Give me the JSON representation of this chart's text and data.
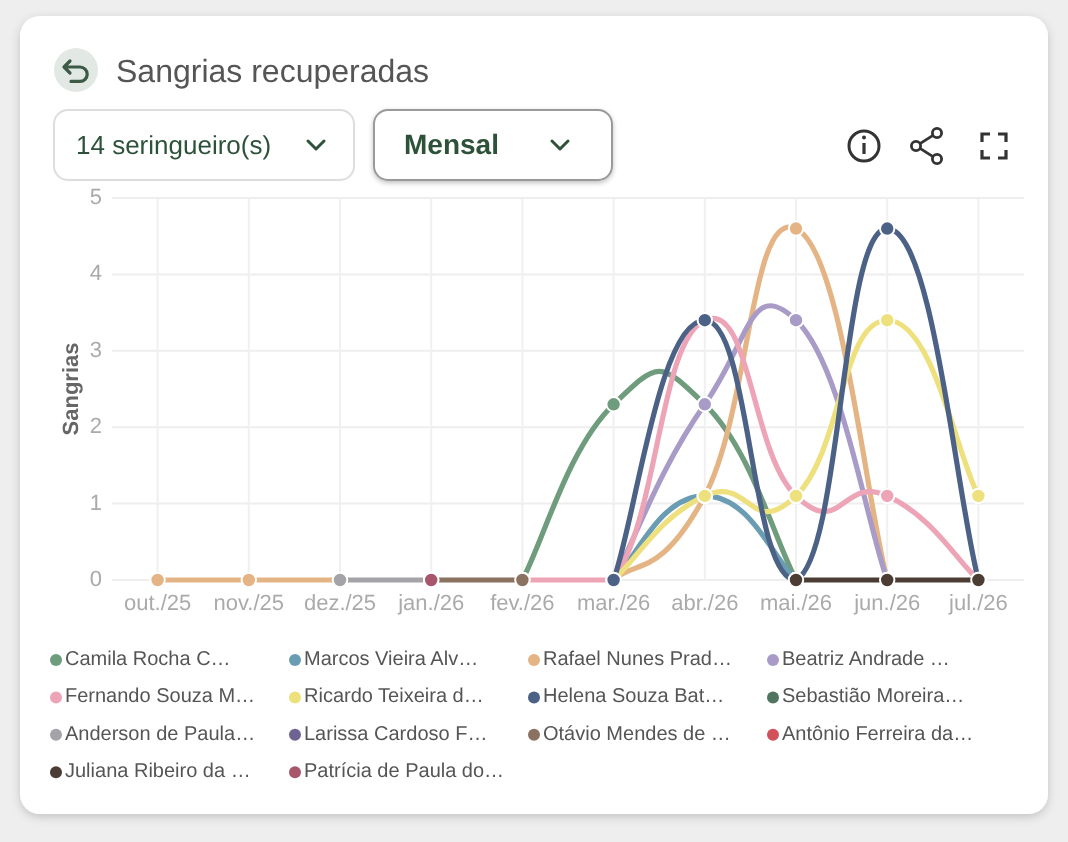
{
  "chart_data": {
    "type": "line",
    "title": "Sangrias recuperadas",
    "ylabel": "Sangrias",
    "annotations": [
      "14 seringueiro(s)",
      "Mensal"
    ],
    "categories": [
      "out./25",
      "nov./25",
      "dez./25",
      "jan./26",
      "fev./26",
      "mar./26",
      "abr./26",
      "mai./26",
      "jun./26",
      "jul./26"
    ],
    "series": [
      {
        "name": "Camila Rocha C…",
        "color": "#6f9c7c",
        "values": [
          null,
          null,
          null,
          null,
          0,
          2.3,
          2.3,
          0,
          null,
          null
        ]
      },
      {
        "name": "Marcos Vieira Alv…",
        "color": "#6a9db3",
        "values": [
          null,
          null,
          null,
          null,
          null,
          0,
          1.1,
          0,
          null,
          null
        ]
      },
      {
        "name": "Rafael Nunes Prad…",
        "color": "#e5b484",
        "values": [
          0,
          0,
          0,
          null,
          null,
          0,
          1.1,
          4.6,
          0,
          null
        ]
      },
      {
        "name": "Beatriz Andrade …",
        "color": "#a99bc7",
        "values": [
          null,
          null,
          null,
          null,
          null,
          0,
          2.3,
          3.4,
          0,
          null
        ]
      },
      {
        "name": "Fernando Souza M…",
        "color": "#eda4b6",
        "values": [
          null,
          null,
          null,
          null,
          0,
          0,
          3.4,
          1.1,
          1.1,
          0
        ]
      },
      {
        "name": "Ricardo Teixeira d…",
        "color": "#eee07c",
        "values": [
          null,
          null,
          null,
          null,
          null,
          0,
          1.1,
          1.1,
          3.4,
          1.1
        ]
      },
      {
        "name": "Helena Souza Bat…",
        "color": "#4c6186",
        "values": [
          null,
          null,
          null,
          null,
          null,
          0,
          3.4,
          0,
          4.6,
          0
        ]
      },
      {
        "name": "Sebastião Moreira…",
        "color": "#4f7560",
        "values": [
          null,
          null,
          null,
          null,
          null,
          null,
          null,
          null,
          null,
          null
        ]
      },
      {
        "name": "Anderson de Paula…",
        "color": "#a3a3a8",
        "values": [
          null,
          null,
          0,
          0,
          null,
          null,
          null,
          null,
          null,
          null
        ]
      },
      {
        "name": "Larissa Cardoso F…",
        "color": "#6f6394",
        "values": [
          null,
          null,
          null,
          null,
          null,
          null,
          null,
          null,
          null,
          null
        ]
      },
      {
        "name": "Otávio Mendes de …",
        "color": "#8b7160",
        "values": [
          null,
          null,
          null,
          0,
          0,
          null,
          null,
          null,
          null,
          null
        ]
      },
      {
        "name": "Antônio Ferreira da…",
        "color": "#d2505a",
        "values": [
          null,
          null,
          null,
          null,
          null,
          null,
          null,
          null,
          null,
          null
        ]
      },
      {
        "name": "Juliana Ribeiro da …",
        "color": "#4b3d33",
        "values": [
          null,
          null,
          null,
          null,
          null,
          null,
          null,
          0,
          0,
          0
        ]
      },
      {
        "name": "Patrícia de Paula do…",
        "color": "#a8566c",
        "values": [
          null,
          null,
          null,
          0,
          null,
          null,
          null,
          null,
          null,
          null
        ]
      }
    ],
    "ylim": [
      0,
      5
    ],
    "yticks": [
      0,
      1,
      2,
      3,
      4,
      5
    ],
    "grid": true,
    "legend": "bottom",
    "marker": "circle",
    "line_style": "solid"
  }
}
